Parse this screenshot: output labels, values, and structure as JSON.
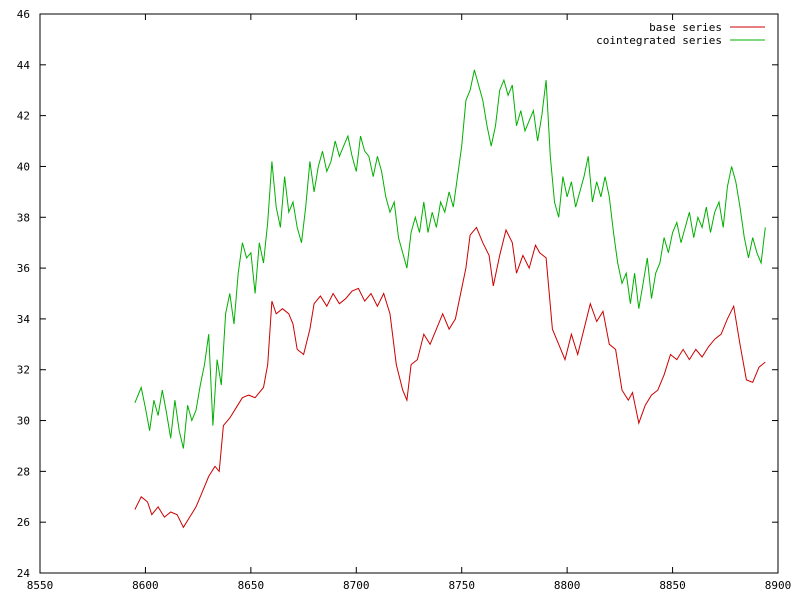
{
  "chart_data": {
    "type": "line",
    "title": "",
    "xlabel": "",
    "ylabel": "",
    "xlim": [
      8550,
      8900
    ],
    "ylim": [
      24,
      46
    ],
    "x_ticks": [
      8550,
      8600,
      8650,
      8700,
      8750,
      8800,
      8850,
      8900
    ],
    "y_ticks": [
      24,
      26,
      28,
      30,
      32,
      34,
      36,
      38,
      40,
      42,
      44,
      46
    ],
    "grid": false,
    "legend_position": "top-right",
    "series": [
      {
        "name": "base series",
        "color": "#cc0000",
        "points": [
          [
            8595,
            26.5
          ],
          [
            8598,
            27.0
          ],
          [
            8601,
            26.8
          ],
          [
            8603,
            26.3
          ],
          [
            8606,
            26.6
          ],
          [
            8609,
            26.2
          ],
          [
            8612,
            26.4
          ],
          [
            8615,
            26.3
          ],
          [
            8618,
            25.8
          ],
          [
            8621,
            26.2
          ],
          [
            8624,
            26.6
          ],
          [
            8627,
            27.2
          ],
          [
            8630,
            27.8
          ],
          [
            8633,
            28.2
          ],
          [
            8635,
            28.0
          ],
          [
            8637,
            29.8
          ],
          [
            8640,
            30.1
          ],
          [
            8643,
            30.5
          ],
          [
            8646,
            30.9
          ],
          [
            8649,
            31.0
          ],
          [
            8652,
            30.9
          ],
          [
            8656,
            31.3
          ],
          [
            8658,
            32.2
          ],
          [
            8660,
            34.7
          ],
          [
            8662,
            34.2
          ],
          [
            8665,
            34.4
          ],
          [
            8668,
            34.2
          ],
          [
            8670,
            33.8
          ],
          [
            8672,
            32.8
          ],
          [
            8675,
            32.6
          ],
          [
            8678,
            33.6
          ],
          [
            8680,
            34.6
          ],
          [
            8683,
            34.9
          ],
          [
            8686,
            34.5
          ],
          [
            8689,
            35.0
          ],
          [
            8692,
            34.6
          ],
          [
            8695,
            34.8
          ],
          [
            8698,
            35.1
          ],
          [
            8701,
            35.2
          ],
          [
            8704,
            34.7
          ],
          [
            8707,
            35.0
          ],
          [
            8710,
            34.5
          ],
          [
            8713,
            35.0
          ],
          [
            8716,
            34.2
          ],
          [
            8719,
            32.2
          ],
          [
            8722,
            31.2
          ],
          [
            8724,
            30.8
          ],
          [
            8726,
            32.2
          ],
          [
            8729,
            32.4
          ],
          [
            8732,
            33.4
          ],
          [
            8735,
            33.0
          ],
          [
            8738,
            33.6
          ],
          [
            8741,
            34.2
          ],
          [
            8744,
            33.6
          ],
          [
            8747,
            34.0
          ],
          [
            8750,
            35.2
          ],
          [
            8752,
            36.0
          ],
          [
            8754,
            37.3
          ],
          [
            8757,
            37.6
          ],
          [
            8760,
            37.0
          ],
          [
            8763,
            36.5
          ],
          [
            8765,
            35.3
          ],
          [
            8768,
            36.5
          ],
          [
            8771,
            37.5
          ],
          [
            8774,
            37.0
          ],
          [
            8776,
            35.8
          ],
          [
            8779,
            36.5
          ],
          [
            8782,
            36.0
          ],
          [
            8785,
            36.9
          ],
          [
            8787,
            36.6
          ],
          [
            8790,
            36.4
          ],
          [
            8793,
            33.6
          ],
          [
            8796,
            33.0
          ],
          [
            8799,
            32.4
          ],
          [
            8802,
            33.4
          ],
          [
            8805,
            32.6
          ],
          [
            8808,
            33.6
          ],
          [
            8811,
            34.6
          ],
          [
            8814,
            33.9
          ],
          [
            8817,
            34.3
          ],
          [
            8820,
            33.0
          ],
          [
            8823,
            32.8
          ],
          [
            8826,
            31.2
          ],
          [
            8829,
            30.8
          ],
          [
            8831,
            31.1
          ],
          [
            8834,
            29.9
          ],
          [
            8837,
            30.6
          ],
          [
            8840,
            31.0
          ],
          [
            8843,
            31.2
          ],
          [
            8846,
            31.8
          ],
          [
            8849,
            32.6
          ],
          [
            8852,
            32.4
          ],
          [
            8855,
            32.8
          ],
          [
            8858,
            32.4
          ],
          [
            8861,
            32.8
          ],
          [
            8864,
            32.5
          ],
          [
            8867,
            32.9
          ],
          [
            8870,
            33.2
          ],
          [
            8873,
            33.4
          ],
          [
            8876,
            34.0
          ],
          [
            8879,
            34.5
          ],
          [
            8882,
            33.0
          ],
          [
            8885,
            31.6
          ],
          [
            8888,
            31.5
          ],
          [
            8891,
            32.1
          ],
          [
            8894,
            32.3
          ]
        ]
      },
      {
        "name": "cointegrated series",
        "color": "#00b000",
        "points": [
          [
            8595,
            30.7
          ],
          [
            8598,
            31.3
          ],
          [
            8600,
            30.5
          ],
          [
            8602,
            29.6
          ],
          [
            8604,
            30.8
          ],
          [
            8606,
            30.2
          ],
          [
            8608,
            31.2
          ],
          [
            8610,
            30.3
          ],
          [
            8612,
            29.3
          ],
          [
            8614,
            30.8
          ],
          [
            8616,
            29.6
          ],
          [
            8618,
            28.9
          ],
          [
            8620,
            30.6
          ],
          [
            8622,
            30.0
          ],
          [
            8624,
            30.4
          ],
          [
            8626,
            31.4
          ],
          [
            8628,
            32.2
          ],
          [
            8630,
            33.4
          ],
          [
            8632,
            29.8
          ],
          [
            8634,
            32.4
          ],
          [
            8636,
            31.4
          ],
          [
            8638,
            34.2
          ],
          [
            8640,
            35.0
          ],
          [
            8642,
            33.8
          ],
          [
            8644,
            35.8
          ],
          [
            8646,
            37.0
          ],
          [
            8648,
            36.4
          ],
          [
            8650,
            36.6
          ],
          [
            8652,
            35.0
          ],
          [
            8654,
            37.0
          ],
          [
            8656,
            36.2
          ],
          [
            8658,
            37.8
          ],
          [
            8660,
            40.2
          ],
          [
            8662,
            38.4
          ],
          [
            8664,
            37.6
          ],
          [
            8666,
            39.6
          ],
          [
            8668,
            38.2
          ],
          [
            8670,
            38.6
          ],
          [
            8672,
            37.6
          ],
          [
            8674,
            37.0
          ],
          [
            8676,
            38.4
          ],
          [
            8678,
            40.2
          ],
          [
            8680,
            39.0
          ],
          [
            8682,
            40.0
          ],
          [
            8684,
            40.6
          ],
          [
            8686,
            39.8
          ],
          [
            8688,
            40.2
          ],
          [
            8690,
            41.0
          ],
          [
            8692,
            40.4
          ],
          [
            8694,
            40.8
          ],
          [
            8696,
            41.2
          ],
          [
            8698,
            40.4
          ],
          [
            8700,
            39.8
          ],
          [
            8702,
            41.2
          ],
          [
            8704,
            40.6
          ],
          [
            8706,
            40.4
          ],
          [
            8708,
            39.6
          ],
          [
            8710,
            40.4
          ],
          [
            8712,
            39.8
          ],
          [
            8714,
            38.8
          ],
          [
            8716,
            38.2
          ],
          [
            8718,
            38.6
          ],
          [
            8720,
            37.2
          ],
          [
            8722,
            36.6
          ],
          [
            8724,
            36.0
          ],
          [
            8726,
            37.4
          ],
          [
            8728,
            38.0
          ],
          [
            8730,
            37.4
          ],
          [
            8732,
            38.6
          ],
          [
            8734,
            37.4
          ],
          [
            8736,
            38.2
          ],
          [
            8738,
            37.6
          ],
          [
            8740,
            38.6
          ],
          [
            8742,
            38.2
          ],
          [
            8744,
            39.0
          ],
          [
            8746,
            38.4
          ],
          [
            8748,
            39.6
          ],
          [
            8750,
            40.8
          ],
          [
            8752,
            42.6
          ],
          [
            8754,
            43.0
          ],
          [
            8756,
            43.8
          ],
          [
            8758,
            43.2
          ],
          [
            8760,
            42.6
          ],
          [
            8762,
            41.6
          ],
          [
            8764,
            40.8
          ],
          [
            8766,
            41.6
          ],
          [
            8768,
            43.0
          ],
          [
            8770,
            43.4
          ],
          [
            8772,
            42.8
          ],
          [
            8774,
            43.2
          ],
          [
            8776,
            41.6
          ],
          [
            8778,
            42.2
          ],
          [
            8780,
            41.4
          ],
          [
            8782,
            41.8
          ],
          [
            8784,
            42.2
          ],
          [
            8786,
            41.0
          ],
          [
            8788,
            42.0
          ],
          [
            8790,
            43.4
          ],
          [
            8792,
            40.4
          ],
          [
            8794,
            38.6
          ],
          [
            8796,
            38.0
          ],
          [
            8798,
            39.6
          ],
          [
            8800,
            38.8
          ],
          [
            8802,
            39.4
          ],
          [
            8804,
            38.4
          ],
          [
            8806,
            39.0
          ],
          [
            8808,
            39.6
          ],
          [
            8810,
            40.4
          ],
          [
            8812,
            38.6
          ],
          [
            8814,
            39.4
          ],
          [
            8816,
            38.8
          ],
          [
            8818,
            39.6
          ],
          [
            8820,
            38.8
          ],
          [
            8822,
            37.4
          ],
          [
            8824,
            36.2
          ],
          [
            8826,
            35.4
          ],
          [
            8828,
            35.8
          ],
          [
            8830,
            34.6
          ],
          [
            8832,
            35.8
          ],
          [
            8834,
            34.4
          ],
          [
            8836,
            35.4
          ],
          [
            8838,
            36.4
          ],
          [
            8840,
            34.8
          ],
          [
            8842,
            35.8
          ],
          [
            8844,
            36.2
          ],
          [
            8846,
            37.2
          ],
          [
            8848,
            36.6
          ],
          [
            8850,
            37.4
          ],
          [
            8852,
            37.8
          ],
          [
            8854,
            37.0
          ],
          [
            8856,
            37.6
          ],
          [
            8858,
            38.2
          ],
          [
            8860,
            37.2
          ],
          [
            8862,
            38.0
          ],
          [
            8864,
            37.6
          ],
          [
            8866,
            38.4
          ],
          [
            8868,
            37.4
          ],
          [
            8870,
            38.2
          ],
          [
            8872,
            38.6
          ],
          [
            8874,
            37.6
          ],
          [
            8876,
            39.2
          ],
          [
            8878,
            40.0
          ],
          [
            8880,
            39.4
          ],
          [
            8882,
            38.4
          ],
          [
            8884,
            37.2
          ],
          [
            8886,
            36.4
          ],
          [
            8888,
            37.2
          ],
          [
            8890,
            36.6
          ],
          [
            8892,
            36.2
          ],
          [
            8894,
            37.6
          ]
        ]
      }
    ]
  }
}
